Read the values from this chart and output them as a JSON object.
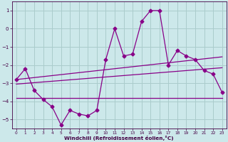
{
  "xlabel": "Windchill (Refroidissement éolien,°C)",
  "bg_color": "#cce8ea",
  "grid_color": "#aacccc",
  "line_color": "#880088",
  "ylim": [
    -5.5,
    1.5
  ],
  "xlim": [
    -0.5,
    23.5
  ],
  "yticks": [
    1,
    0,
    -1,
    -2,
    -3,
    -4,
    -5
  ],
  "xticks": [
    0,
    1,
    2,
    3,
    4,
    5,
    6,
    7,
    8,
    9,
    10,
    11,
    12,
    13,
    14,
    15,
    16,
    17,
    18,
    19,
    20,
    21,
    22,
    23
  ],
  "line1_x": [
    0,
    1,
    2,
    3,
    4,
    5,
    6,
    7,
    8,
    9,
    10,
    11,
    12,
    13,
    14,
    15,
    16,
    17,
    18,
    19,
    20,
    21,
    22,
    23
  ],
  "line1_y": [
    -2.8,
    -2.2,
    -3.4,
    -3.9,
    -4.3,
    -5.3,
    -4.5,
    -4.7,
    -4.8,
    -4.5,
    -1.7,
    0.0,
    -1.5,
    -1.4,
    0.4,
    1.0,
    1.0,
    -2.0,
    -1.2,
    -1.5,
    -1.7,
    -2.3,
    -2.5,
    -3.5
  ],
  "line2_x": [
    0,
    23
  ],
  "line2_y": [
    -2.8,
    -1.55
  ],
  "line3_x": [
    0,
    23
  ],
  "line3_y": [
    -3.05,
    -2.15
  ],
  "line4_x": [
    0,
    10,
    23
  ],
  "line4_y": [
    -3.8,
    -3.8,
    -3.8
  ]
}
